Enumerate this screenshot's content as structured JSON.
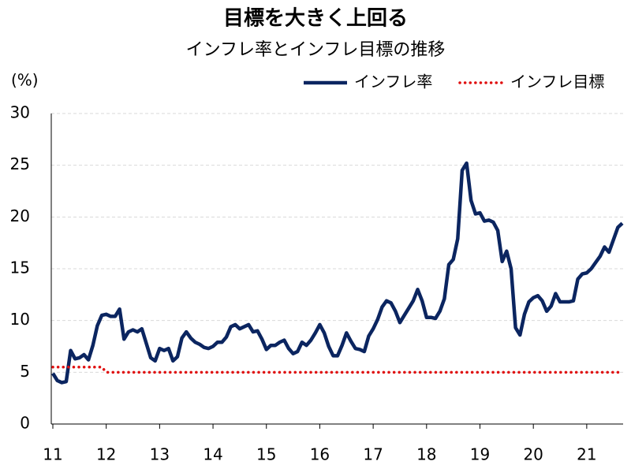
{
  "chart_data": {
    "type": "line",
    "title": "目標を大きく上回る",
    "subtitle": "インフレ率とインフレ目標の推移",
    "y_label": "(%)",
    "categories": [
      "11",
      null,
      null,
      null,
      null,
      null,
      null,
      null,
      null,
      null,
      null,
      null,
      "12",
      null,
      null,
      null,
      null,
      null,
      null,
      null,
      null,
      null,
      null,
      null,
      "13",
      null,
      null,
      null,
      null,
      null,
      null,
      null,
      null,
      null,
      null,
      null,
      "14",
      null,
      null,
      null,
      null,
      null,
      null,
      null,
      null,
      null,
      null,
      null,
      "15",
      null,
      null,
      null,
      null,
      null,
      null,
      null,
      null,
      null,
      null,
      null,
      "16",
      null,
      null,
      null,
      null,
      null,
      null,
      null,
      null,
      null,
      null,
      null,
      "17",
      null,
      null,
      null,
      null,
      null,
      null,
      null,
      null,
      null,
      null,
      null,
      "18",
      null,
      null,
      null,
      null,
      null,
      null,
      null,
      null,
      null,
      null,
      null,
      "19",
      null,
      null,
      null,
      null,
      null,
      null,
      null,
      null,
      null,
      null,
      null,
      "20",
      null,
      null,
      null,
      null,
      null,
      null,
      null,
      null,
      null,
      null,
      null,
      "21",
      null,
      null,
      null,
      null,
      null,
      null,
      null,
      null
    ],
    "series": [
      {
        "name": "インフレ率",
        "color": "#0b2560",
        "style": "solid",
        "values": [
          4.9,
          4.2,
          4.0,
          4.1,
          7.1,
          6.3,
          6.4,
          6.7,
          6.2,
          7.6,
          9.5,
          10.5,
          10.6,
          10.4,
          10.4,
          11.1,
          8.2,
          8.9,
          9.1,
          8.9,
          9.2,
          7.8,
          6.4,
          6.1,
          7.3,
          7.1,
          7.3,
          6.1,
          6.5,
          8.3,
          8.9,
          8.3,
          7.9,
          7.7,
          7.4,
          7.3,
          7.5,
          7.9,
          7.9,
          8.4,
          9.4,
          9.6,
          9.2,
          9.4,
          9.6,
          8.9,
          9.0,
          8.2,
          7.2,
          7.6,
          7.6,
          7.9,
          8.1,
          7.3,
          6.8,
          7.0,
          7.9,
          7.6,
          8.1,
          8.8,
          9.6,
          8.8,
          7.5,
          6.6,
          6.6,
          7.6,
          8.8,
          8.0,
          7.3,
          7.2,
          7.0,
          8.5,
          9.2,
          10.1,
          11.3,
          11.9,
          11.7,
          10.9,
          9.8,
          10.5,
          11.2,
          11.9,
          13.0,
          11.9,
          10.3,
          10.3,
          10.2,
          10.9,
          12.1,
          15.4,
          15.9,
          17.9,
          24.5,
          25.2,
          21.6,
          20.3,
          20.4,
          19.6,
          19.7,
          19.5,
          18.7,
          15.7,
          16.7,
          15.0,
          9.3,
          8.6,
          10.6,
          11.8,
          12.2,
          12.4,
          11.9,
          10.9,
          11.4,
          12.6,
          11.8,
          11.8,
          11.8,
          11.9,
          14.0,
          14.5,
          14.6,
          15.0,
          15.6,
          16.2,
          17.1,
          16.6,
          17.8,
          19.0,
          19.4
        ]
      },
      {
        "name": "インフレ目標",
        "color": "#e01010",
        "style": "dotted",
        "values": [
          5.5,
          5.5,
          5.5,
          5.5,
          5.5,
          5.5,
          5.5,
          5.5,
          5.5,
          5.5,
          5.5,
          5.5,
          5,
          5,
          5,
          5,
          5,
          5,
          5,
          5,
          5,
          5,
          5,
          5,
          5,
          5,
          5,
          5,
          5,
          5,
          5,
          5,
          5,
          5,
          5,
          5,
          5,
          5,
          5,
          5,
          5,
          5,
          5,
          5,
          5,
          5,
          5,
          5,
          5,
          5,
          5,
          5,
          5,
          5,
          5,
          5,
          5,
          5,
          5,
          5,
          5,
          5,
          5,
          5,
          5,
          5,
          5,
          5,
          5,
          5,
          5,
          5,
          5,
          5,
          5,
          5,
          5,
          5,
          5,
          5,
          5,
          5,
          5,
          5,
          5,
          5,
          5,
          5,
          5,
          5,
          5,
          5,
          5,
          5,
          5,
          5,
          5,
          5,
          5,
          5,
          5,
          5,
          5,
          5,
          5,
          5,
          5,
          5,
          5,
          5,
          5,
          5,
          5,
          5,
          5,
          5,
          5,
          5,
          5,
          5,
          5,
          5,
          5,
          5,
          5,
          5,
          5,
          5,
          5
        ]
      }
    ],
    "ylim": [
      0,
      30
    ],
    "yticks": [
      0,
      5,
      10,
      15,
      20,
      25,
      30
    ],
    "grid": true,
    "legend": "top-right"
  }
}
